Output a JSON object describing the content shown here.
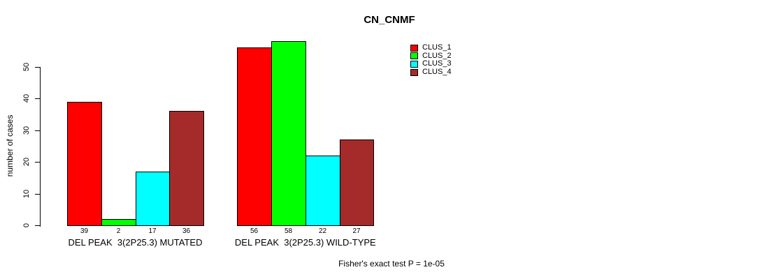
{
  "title": "CN_CNMF",
  "y_axis_label": "number of cases",
  "annotation": "Fisher's exact test P = 1e-05",
  "chart_data": {
    "type": "bar",
    "title": "CN_CNMF",
    "xlabel": "",
    "ylabel": "number of cases",
    "ylim": [
      0,
      58
    ],
    "yticks": [
      0,
      10,
      20,
      30,
      40,
      50
    ],
    "grid": false,
    "legend_position": "top-right",
    "value_labels_under_bars": true,
    "categories": [
      "DEL PEAK  3(2P25.3) MUTATED",
      "DEL PEAK  3(2P25.3) WILD-TYPE"
    ],
    "series": [
      {
        "name": "CLUS_1",
        "color": "#FF0000",
        "values": [
          39,
          56
        ]
      },
      {
        "name": "CLUS_2",
        "color": "#00FF00",
        "values": [
          2,
          58
        ]
      },
      {
        "name": "CLUS_3",
        "color": "#00FFFF",
        "values": [
          17,
          22
        ]
      },
      {
        "name": "CLUS_4",
        "color": "#A52A2A",
        "values": [
          36,
          27
        ]
      }
    ],
    "annotation": "Fisher's exact test P = 1e-05"
  }
}
